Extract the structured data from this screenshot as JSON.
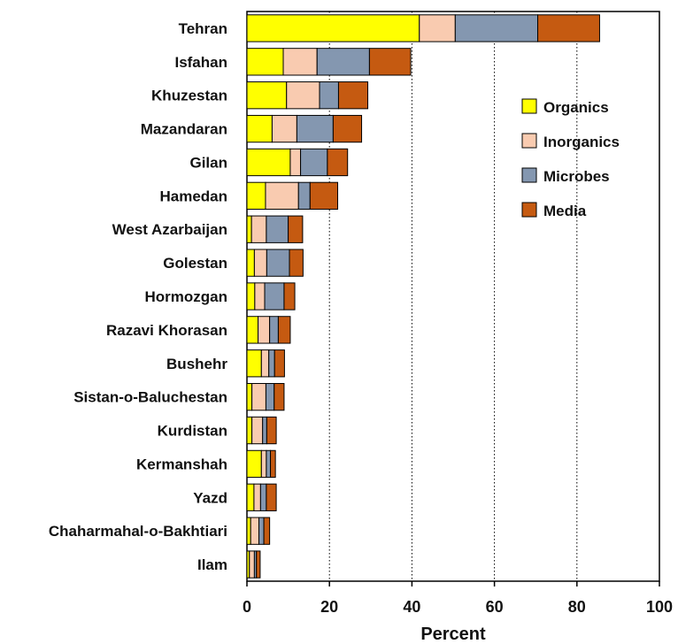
{
  "chart_data": {
    "type": "bar",
    "orientation": "horizontal",
    "stacked": true,
    "categories": [
      "Tehran",
      "Isfahan",
      "Khuzestan",
      "Mazandaran",
      "Gilan",
      "Hamedan",
      "West Azarbaijan",
      "Golestan",
      "Hormozgan",
      "Razavi Khorasan",
      "Bushehr",
      "Sistan-o-Baluchestan",
      "Kurdistan",
      "Kermanshah",
      "Yazd",
      "Chaharmahal-o-Bakhtiari",
      "Ilam"
    ],
    "series": [
      {
        "name": "Organics",
        "color": "#ffff00",
        "values": [
          41.8,
          8.8,
          9.6,
          6.1,
          10.5,
          4.5,
          1.1,
          1.8,
          1.9,
          2.7,
          3.5,
          1.2,
          1.2,
          3.5,
          1.7,
          0.9,
          0.6
        ]
      },
      {
        "name": "Inorganics",
        "color": "#f9cbb0",
        "values": [
          8.7,
          8.2,
          8.0,
          6.0,
          2.5,
          8.0,
          3.6,
          3.0,
          2.4,
          2.8,
          1.8,
          3.4,
          2.6,
          1.2,
          1.6,
          2.0,
          1.2
        ]
      },
      {
        "name": "Microbes",
        "color": "#8497b0",
        "values": [
          20.0,
          12.7,
          4.6,
          8.8,
          6.5,
          2.8,
          5.3,
          5.5,
          4.7,
          2.1,
          1.4,
          2.0,
          1.0,
          1.0,
          1.4,
          1.2,
          0.5
        ]
      },
      {
        "name": "Media",
        "color": "#c55a11",
        "values": [
          15.0,
          10.0,
          7.1,
          6.9,
          4.9,
          6.7,
          3.5,
          3.3,
          2.6,
          2.9,
          2.4,
          2.4,
          2.3,
          1.2,
          2.4,
          1.4,
          0.9
        ]
      }
    ],
    "xlabel": "Percent",
    "xlim": [
      0,
      100
    ],
    "xticks": [
      0,
      20,
      40,
      60,
      80,
      100
    ],
    "grid": "vertical dotted",
    "legend": {
      "position": "right",
      "entries": [
        "Organics",
        "Inorganics",
        "Microbes",
        "Media"
      ]
    }
  }
}
